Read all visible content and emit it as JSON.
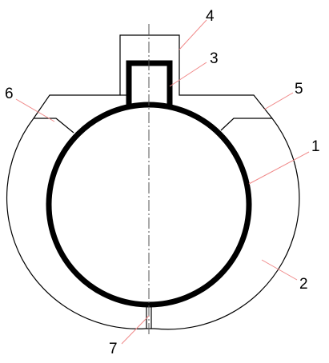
{
  "labels": {
    "l1": "1",
    "l2": "2",
    "l3": "3",
    "l4": "4",
    "l5": "5",
    "l6": "6",
    "l7": "7"
  },
  "colors": {
    "outline": "#000000",
    "leader_line": "#f08a8a",
    "center_line": "#555555",
    "background": "#ffffff"
  }
}
